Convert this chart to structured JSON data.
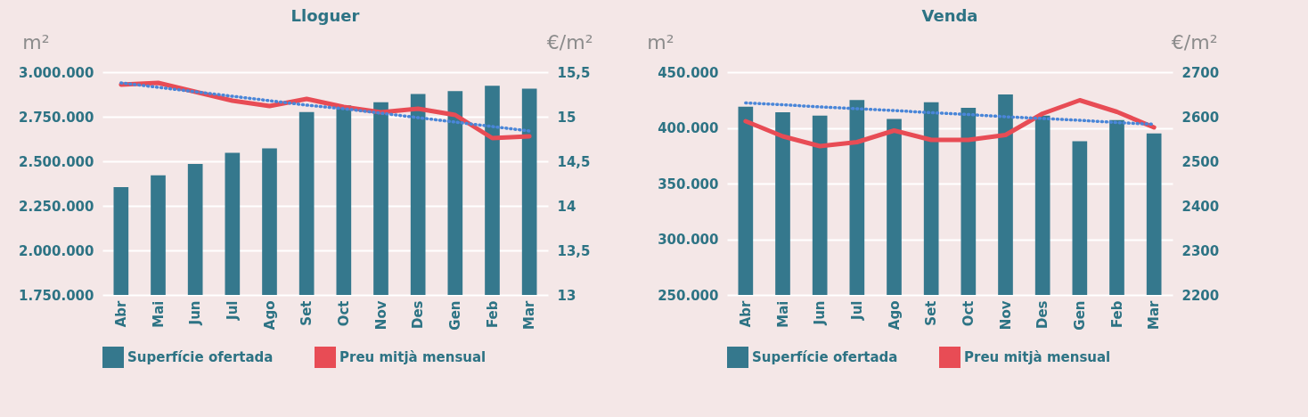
{
  "chart_data": [
    {
      "type": "bar",
      "title": "Lloguer",
      "ylabel": "m²",
      "y2label": "€/m²",
      "categories": [
        "Abr",
        "Mai",
        "Jun",
        "Jul",
        "Ago",
        "Set",
        "Oct",
        "Nov",
        "Des",
        "Gen",
        "Feb",
        "Mar"
      ],
      "series": [
        {
          "name": "Superfície ofertada",
          "color": "#35788d",
          "values": [
            2355000,
            2421000,
            2485000,
            2548000,
            2573000,
            2776000,
            2814000,
            2831000,
            2877000,
            2894000,
            2924000,
            2907000
          ]
        },
        {
          "name": "Preu mitjà mensual",
          "type": "line",
          "axis": "y2",
          "color": "#e84c55",
          "values": [
            15.36,
            15.38,
            15.28,
            15.18,
            15.12,
            15.2,
            15.11,
            15.05,
            15.09,
            15.02,
            14.76,
            14.78
          ]
        },
        {
          "type": "line",
          "axis": "y2",
          "color": "#4a86d8",
          "line_style": "dotted",
          "values": [
            15.38,
            15.33,
            15.28,
            15.23,
            15.18,
            15.13,
            15.09,
            15.04,
            14.99,
            14.94,
            14.89,
            14.84
          ]
        }
      ],
      "ylim": [
        1750000,
        3000000
      ],
      "yticks": [
        {
          "value": 1750000,
          "label": "1.750.000"
        },
        {
          "value": 2000000,
          "label": "2.000.000"
        },
        {
          "value": 2250000,
          "label": "2.250.000"
        },
        {
          "value": 2500000,
          "label": "2.500.000"
        },
        {
          "value": 2750000,
          "label": "2.750.000"
        },
        {
          "value": 3000000,
          "label": "3.000.000"
        }
      ],
      "y2lim": [
        13,
        15.5
      ],
      "y2ticks": [
        13,
        {
          "value": 13.5,
          "label": "13,5"
        },
        14,
        {
          "value": 14.5,
          "label": "14,5"
        },
        15,
        {
          "value": 15.5,
          "label": "15,5"
        }
      ],
      "grid": "y",
      "legend": "bottom"
    },
    {
      "type": "bar",
      "title": "Venda",
      "ylabel": "m²",
      "y2label": "€/m²",
      "categories": [
        "Abr",
        "Mai",
        "Jun",
        "Jul",
        "Ago",
        "Set",
        "Oct",
        "Nov",
        "Des",
        "Gen",
        "Feb",
        "Mar"
      ],
      "series": [
        {
          "name": "Superfície ofertada",
          "color": "#35788d",
          "values": [
            419000,
            414000,
            411000,
            425000,
            408000,
            423000,
            418000,
            430000,
            411000,
            388000,
            407000,
            395000
          ]
        },
        {
          "name": "Preu mitjà mensual",
          "type": "line",
          "axis": "y2",
          "color": "#e84c55",
          "values": [
            2590,
            2556,
            2534,
            2543,
            2569,
            2548,
            2548,
            2559,
            2607,
            2637,
            2611,
            2576
          ]
        },
        {
          "type": "line",
          "axis": "y2",
          "color": "#4a86d8",
          "line_style": "dotted",
          "values": [
            2631,
            2627,
            2622,
            2618,
            2614,
            2609,
            2605,
            2600,
            2596,
            2592,
            2587,
            2583
          ]
        }
      ],
      "ylim": [
        250000,
        450000
      ],
      "yticks": [
        {
          "value": 250000,
          "label": "250.000"
        },
        {
          "value": 300000,
          "label": "300.000"
        },
        {
          "value": 350000,
          "label": "350.000"
        },
        {
          "value": 400000,
          "label": "400.000"
        },
        {
          "value": 450000,
          "label": "450.000"
        }
      ],
      "y2lim": [
        2200,
        2700
      ],
      "y2ticks": [
        2200,
        2300,
        2400,
        2500,
        2600,
        2700
      ],
      "grid": "y",
      "legend": "bottom"
    }
  ]
}
